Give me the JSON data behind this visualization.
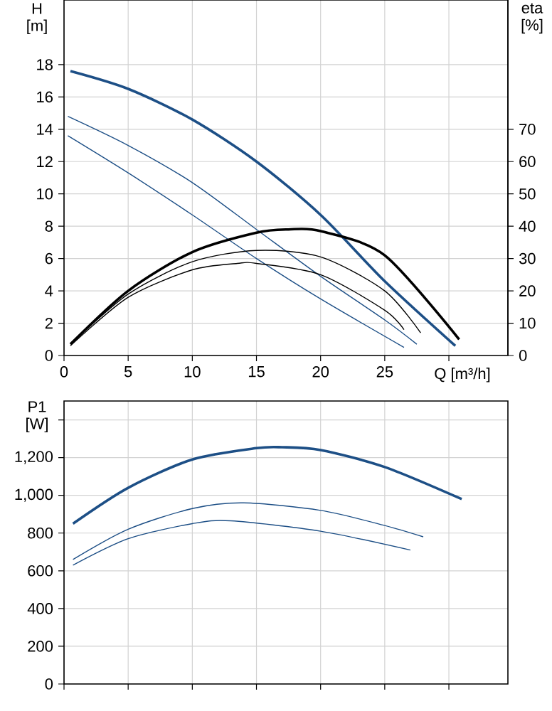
{
  "chart_data": [
    {
      "type": "line",
      "xlabel": "Q [m³/h]",
      "ylabel": "H [m]",
      "y2label": "eta [%]",
      "grid": true,
      "marker": "none",
      "line_style": "solid",
      "xlim": [
        0,
        34.6
      ],
      "xticks": [
        0,
        5,
        10,
        15,
        20,
        25,
        {
          "value": 30,
          "label": null
        }
      ],
      "ylim": [
        0,
        22
      ],
      "yticks": [
        0,
        2,
        4,
        6,
        8,
        10,
        12,
        14,
        16,
        18
      ],
      "y2lim": [
        0,
        110
      ],
      "y2ticks": [
        0,
        10,
        20,
        30,
        40,
        50,
        60,
        70
      ],
      "series": [
        {
          "color": "#1d4f86",
          "x": [
            0.5,
            5,
            10,
            15,
            20,
            25,
            30.5
          ],
          "values": [
            17.6,
            16.5,
            14.6,
            12,
            8.7,
            4.6,
            0.6
          ]
        },
        {
          "color": "#1d4f86",
          "x": [
            0.3,
            5,
            10,
            15,
            20,
            25,
            27.5
          ],
          "values": [
            14.8,
            13.0,
            10.7,
            7.8,
            4.9,
            2.2,
            0.7
          ]
        },
        {
          "color": "#1d4f86",
          "x": [
            0.3,
            5,
            10,
            15,
            20,
            26.5
          ],
          "values": [
            13.6,
            11.3,
            8.7,
            6.0,
            3.5,
            0.5
          ]
        },
        {
          "color": "#000000",
          "axis": "y2",
          "x": [
            0.5,
            5,
            10,
            15,
            17.5,
            20,
            25,
            30.8
          ],
          "values": [
            3.5,
            20,
            32,
            38,
            39,
            38.5,
            31,
            5
          ]
        },
        {
          "color": "#000000",
          "axis": "y2",
          "x": [
            0.5,
            5,
            10,
            15,
            20,
            25,
            27.8
          ],
          "values": [
            3.5,
            19,
            29,
            32.5,
            30.5,
            20,
            7
          ]
        },
        {
          "color": "#000000",
          "axis": "y2",
          "x": [
            0.5,
            5,
            10,
            13.5,
            15,
            20,
            25,
            26.5
          ],
          "values": [
            3,
            18,
            26.5,
            28.5,
            28.5,
            25,
            14,
            8
          ]
        }
      ]
    },
    {
      "type": "line",
      "ylabel": "P1 [W]",
      "grid": true,
      "marker": "none",
      "line_style": "solid",
      "tick_labels": "y",
      "xlim": [
        0,
        34.6
      ],
      "xticks": [
        0,
        5,
        10,
        15,
        20,
        25,
        30
      ],
      "ylim": [
        0,
        1500
      ],
      "yticks": [
        0,
        200,
        400,
        600,
        800,
        {
          "value": 1000,
          "label": "1,000"
        },
        {
          "value": 1200,
          "label": "1,200"
        },
        {
          "value": 1400,
          "label": null
        }
      ],
      "series": [
        {
          "color": "#1d4f86",
          "x": [
            0.7,
            5,
            10,
            15,
            17,
            20,
            25,
            31
          ],
          "values": [
            850,
            1040,
            1190,
            1250,
            1255,
            1240,
            1150,
            980
          ]
        },
        {
          "color": "#1d4f86",
          "x": [
            0.7,
            5,
            10,
            14,
            20,
            25,
            28
          ],
          "values": [
            660,
            820,
            930,
            960,
            920,
            840,
            780
          ]
        },
        {
          "color": "#1d4f86",
          "x": [
            0.7,
            5,
            10,
            13,
            20,
            27
          ],
          "values": [
            630,
            770,
            850,
            865,
            810,
            710
          ]
        }
      ]
    }
  ]
}
